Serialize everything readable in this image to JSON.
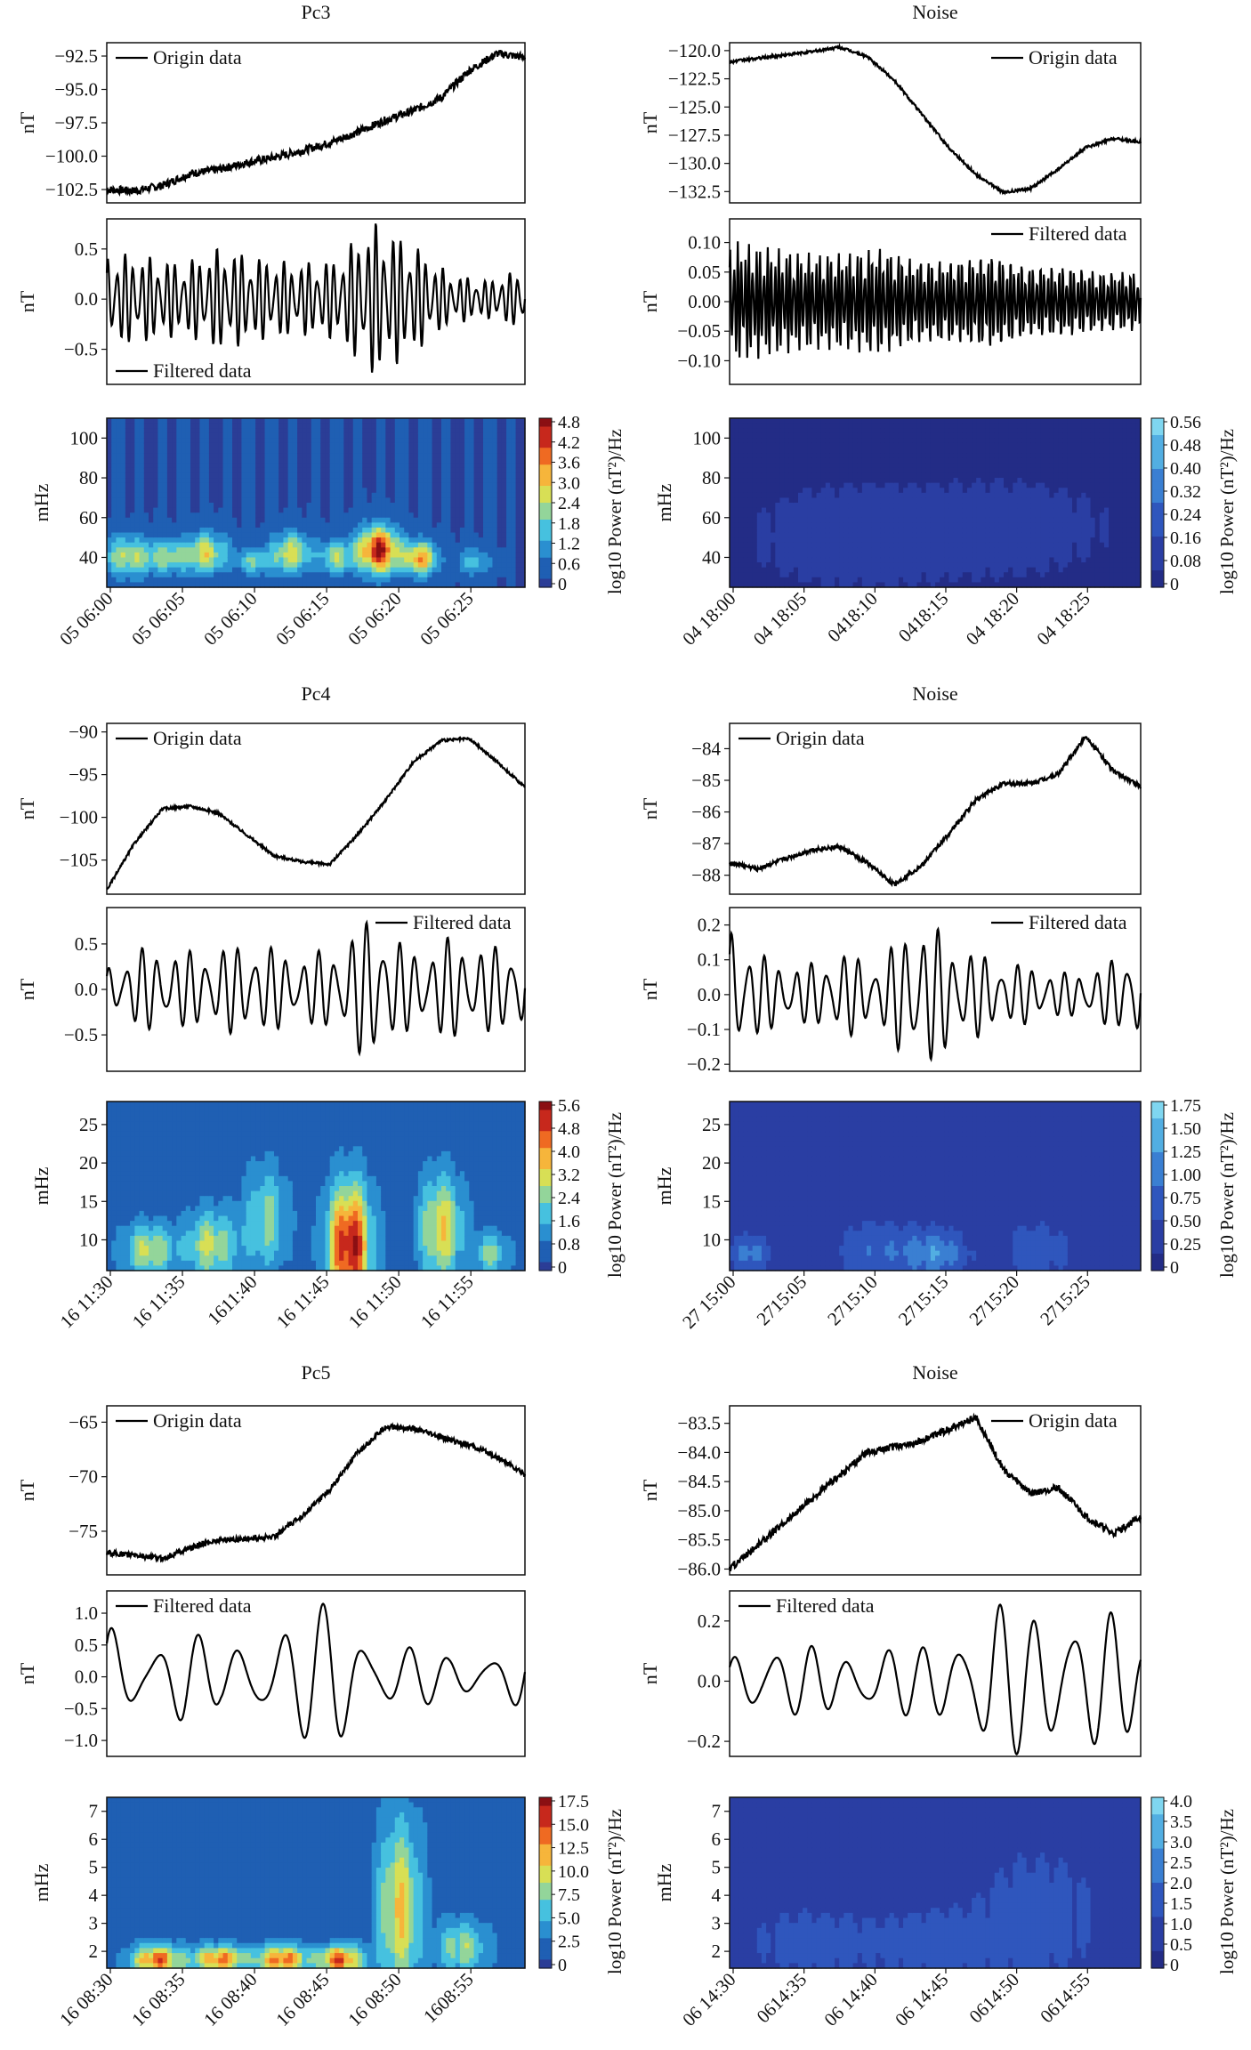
{
  "colormap": [
    "#2b3d96",
    "#1f5fb3",
    "#2a8fd0",
    "#46c1df",
    "#93d59a",
    "#d8df55",
    "#f6b53b",
    "#ef6a22",
    "#c7281c",
    "#8b0f13"
  ],
  "colormap_blue": [
    "#232c86",
    "#2a3ea3",
    "#2f56bd",
    "#3a7fd2",
    "#52aee2",
    "#7fd6f0"
  ],
  "chart_data": [
    {
      "id": "pc3-origin",
      "type": "line",
      "title": "Pc3",
      "ylabel": "nT",
      "legend": "Origin data",
      "legend_pos": "top-left",
      "ylim": [
        -103.5,
        -91.5
      ],
      "yticks": [
        -92.5,
        -95.0,
        -97.5,
        -100.0,
        -102.5
      ],
      "ytick_labels": [
        "−92.5",
        "−95.0",
        "−97.5",
        "−100.0",
        "−102.5"
      ],
      "x": [
        0,
        2,
        4,
        6,
        8,
        10,
        12,
        14,
        16,
        18,
        20,
        22,
        24,
        26,
        28,
        30
      ],
      "y": [
        -102.5,
        -102.6,
        -102.2,
        -101.3,
        -101,
        -100.5,
        -100.1,
        -99.6,
        -99,
        -98.2,
        -97.3,
        -96.6,
        -95.6,
        -93.6,
        -92.3,
        -92.6
      ],
      "noise": 0.3
    },
    {
      "id": "pc3-filtered",
      "type": "line",
      "ylabel": "nT",
      "legend": "Filtered data",
      "legend_pos": "bottom-left",
      "ylim": [
        -0.85,
        0.8
      ],
      "yticks": [
        0.5,
        0.0,
        -0.5
      ],
      "ytick_labels": [
        "0.5",
        "0.0",
        "−0.5"
      ],
      "osc": {
        "periods": 50,
        "amp": [
          0.45,
          0.42,
          0.35,
          0.5,
          0.4,
          0.35,
          0.38,
          0.75,
          0.55,
          0.25,
          0.18,
          0.3
        ]
      }
    },
    {
      "id": "pc3-spectrum",
      "type": "heatmap",
      "ylabel": "mHz",
      "yticks": [
        40,
        60,
        80,
        100
      ],
      "ytick_labels": [
        "40",
        "60",
        "80",
        "100"
      ],
      "ylim": [
        25,
        110
      ],
      "x_labels": [
        "05 06:00",
        "05 06:05",
        "05 06:10",
        "05 06:15",
        "05 06:20",
        "05 06:25"
      ],
      "colorbar_ticks": [
        "4.8",
        "4.2",
        "3.6",
        "3.0",
        "2.4",
        "1.8",
        "1.2",
        "0.6",
        "0"
      ],
      "colorbar_label": "log10 Power (nT²)/Hz",
      "palette": "full",
      "base": 0.06,
      "blobs": [
        [
          0.05,
          0.18,
          0.06,
          0.12,
          0.5
        ],
        [
          0.15,
          0.18,
          0.05,
          0.1,
          0.4
        ],
        [
          0.24,
          0.2,
          0.05,
          0.12,
          0.55
        ],
        [
          0.35,
          0.15,
          0.04,
          0.08,
          0.35
        ],
        [
          0.44,
          0.2,
          0.05,
          0.12,
          0.55
        ],
        [
          0.55,
          0.18,
          0.04,
          0.1,
          0.45
        ],
        [
          0.65,
          0.22,
          0.05,
          0.14,
          0.95
        ],
        [
          0.75,
          0.17,
          0.04,
          0.1,
          0.7
        ],
        [
          0.88,
          0.15,
          0.04,
          0.08,
          0.3
        ]
      ]
    },
    {
      "id": "noise1-origin",
      "type": "line",
      "title": "Noise",
      "ylabel": "nT",
      "legend": "Origin data",
      "legend_pos": "top-right",
      "ylim": [
        -133.5,
        -119.3
      ],
      "yticks": [
        -120.0,
        -122.5,
        -125.0,
        -127.5,
        -130.0,
        -132.5
      ],
      "ytick_labels": [
        "−120.0",
        "−122.5",
        "−125.0",
        "−127.5",
        "−130.0",
        "−132.5"
      ],
      "x": [
        0,
        2,
        4,
        6,
        8,
        10,
        12,
        14,
        16,
        18,
        20,
        22,
        24,
        26,
        28,
        30
      ],
      "y": [
        -121,
        -120.7,
        -120.4,
        -120.1,
        -119.7,
        -120.5,
        -122.6,
        -125.6,
        -128.6,
        -131,
        -132.6,
        -132.2,
        -130.5,
        -128.6,
        -127.8,
        -128.1
      ],
      "noise": 0.12
    },
    {
      "id": "noise1-filtered",
      "type": "line",
      "ylabel": "nT",
      "legend": "Filtered data",
      "legend_pos": "top-right",
      "ylim": [
        -0.14,
        0.14
      ],
      "yticks": [
        0.1,
        0.05,
        0.0,
        -0.05,
        -0.1
      ],
      "ytick_labels": [
        "0.10",
        "0.05",
        "0.00",
        "−0.05",
        "−0.10"
      ],
      "osc": {
        "periods": 110,
        "amp": [
          0.1,
          0.09,
          0.08,
          0.08,
          0.09,
          0.07,
          0.07,
          0.08,
          0.06,
          0.06,
          0.05,
          0.05
        ]
      }
    },
    {
      "id": "noise1-spectrum",
      "type": "heatmap",
      "ylabel": "mHz",
      "yticks": [
        40,
        60,
        80,
        100
      ],
      "ytick_labels": [
        "40",
        "60",
        "80",
        "100"
      ],
      "ylim": [
        25,
        110
      ],
      "x_labels": [
        "04 18:00",
        "04 18:05",
        "0418:10",
        "0418:15",
        "04 18:20",
        "04 18:25"
      ],
      "colorbar_ticks": [
        "0.56",
        "0.48",
        "0.40",
        "0.32",
        "0.24",
        "0.16",
        "0.08",
        "0"
      ],
      "colorbar_label": "log10 Power (nT²)/Hz",
      "palette": "blue",
      "base": 0.05,
      "blobs": [
        [
          0.3,
          0.3,
          0.25,
          0.3,
          0.15
        ],
        [
          0.7,
          0.35,
          0.25,
          0.3,
          0.12
        ]
      ]
    },
    {
      "id": "pc4-origin",
      "type": "line",
      "title": "Pc4",
      "ylabel": "nT",
      "legend": "Origin data",
      "legend_pos": "top-left",
      "ylim": [
        -109,
        -89
      ],
      "yticks": [
        -90,
        -95,
        -100,
        -105
      ],
      "ytick_labels": [
        "−90",
        "−95",
        "−100",
        "−105"
      ],
      "x": [
        0,
        2,
        4,
        6,
        8,
        10,
        12,
        14,
        16,
        18,
        20,
        22,
        24,
        26,
        28,
        30
      ],
      "y": [
        -108.5,
        -103,
        -99,
        -98.7,
        -99.5,
        -102,
        -104.5,
        -105.2,
        -105.5,
        -102,
        -98,
        -93.5,
        -91,
        -90.8,
        -93.5,
        -96.5
      ],
      "noise": 0.15
    },
    {
      "id": "pc4-filtered",
      "type": "line",
      "ylabel": "nT",
      "legend": "Filtered data",
      "legend_pos": "top-right",
      "ylim": [
        -0.9,
        0.9
      ],
      "yticks": [
        0.5,
        0.0,
        -0.5
      ],
      "ytick_labels": [
        "0.5",
        "0.0",
        "−0.5"
      ],
      "osc": {
        "periods": 26,
        "amp": [
          0.25,
          0.45,
          0.4,
          0.45,
          0.5,
          0.35,
          0.45,
          0.8,
          0.4,
          0.55,
          0.45,
          0.5
        ]
      }
    },
    {
      "id": "pc4-spectrum",
      "type": "heatmap",
      "ylabel": "mHz",
      "yticks": [
        10,
        15,
        20,
        25
      ],
      "ytick_labels": [
        "10",
        "15",
        "20",
        "25"
      ],
      "ylim": [
        6,
        28
      ],
      "x_labels": [
        "16 11:30",
        "16 11:35",
        "1611:40",
        "16 11:45",
        "16 11:50",
        "16 11:55"
      ],
      "colorbar_ticks": [
        "5.6",
        "4.8",
        "4.0",
        "3.2",
        "2.4",
        "1.6",
        "0.8",
        "0"
      ],
      "colorbar_label": "log10 Power (nT²)/Hz",
      "palette": "full",
      "base": 0.12,
      "blobs": [
        [
          0.1,
          0.12,
          0.06,
          0.15,
          0.45
        ],
        [
          0.25,
          0.15,
          0.06,
          0.2,
          0.45
        ],
        [
          0.38,
          0.3,
          0.05,
          0.3,
          0.35
        ],
        [
          0.58,
          0.15,
          0.05,
          0.35,
          0.95
        ],
        [
          0.8,
          0.25,
          0.05,
          0.3,
          0.55
        ],
        [
          0.92,
          0.1,
          0.04,
          0.12,
          0.35
        ]
      ]
    },
    {
      "id": "noise2-origin",
      "type": "line",
      "title": "Noise",
      "ylabel": "nT",
      "legend": "Origin data",
      "legend_pos": "top-left",
      "ylim": [
        -88.6,
        -83.2
      ],
      "yticks": [
        -84,
        -85,
        -86,
        -87,
        -88
      ],
      "ytick_labels": [
        "−84",
        "−85",
        "−86",
        "−87",
        "−88"
      ],
      "x": [
        0,
        2,
        4,
        6,
        8,
        10,
        12,
        14,
        16,
        18,
        20,
        22,
        24,
        26,
        28,
        30
      ],
      "y": [
        -87.6,
        -87.8,
        -87.5,
        -87.2,
        -87.1,
        -87.6,
        -88.3,
        -87.7,
        -86.7,
        -85.6,
        -85.1,
        -85.1,
        -84.8,
        -83.6,
        -84.7,
        -85.2
      ],
      "noise": 0.07
    },
    {
      "id": "noise2-filtered",
      "type": "line",
      "ylabel": "nT",
      "legend": "Filtered data",
      "legend_pos": "top-right",
      "ylim": [
        -0.22,
        0.25
      ],
      "yticks": [
        0.2,
        0.1,
        0.0,
        -0.1,
        -0.2
      ],
      "ytick_labels": [
        "0.2",
        "0.1",
        "0.0",
        "−0.1",
        "−0.2"
      ],
      "osc": {
        "periods": 26,
        "amp": [
          0.2,
          0.1,
          0.08,
          0.12,
          0.09,
          0.22,
          0.15,
          0.1,
          0.08,
          0.06,
          0.08,
          0.15
        ]
      }
    },
    {
      "id": "noise2-spectrum",
      "type": "heatmap",
      "ylabel": "mHz",
      "yticks": [
        10,
        15,
        20,
        25
      ],
      "ytick_labels": [
        "10",
        "15",
        "20",
        "25"
      ],
      "ylim": [
        6,
        28
      ],
      "x_labels": [
        "27 15:00",
        "2715:05",
        "2715:10",
        "2715:15",
        "2715:20",
        "2715:25"
      ],
      "colorbar_ticks": [
        "1.75",
        "1.50",
        "1.25",
        "1.00",
        "0.75",
        "0.50",
        "0.25",
        "0"
      ],
      "colorbar_label": "log10 Power (nT²)/Hz",
      "palette": "blue",
      "base": 0.15,
      "blobs": [
        [
          0.05,
          0.1,
          0.05,
          0.12,
          0.5
        ],
        [
          0.35,
          0.12,
          0.1,
          0.2,
          0.35
        ],
        [
          0.5,
          0.1,
          0.08,
          0.15,
          0.55
        ],
        [
          0.75,
          0.12,
          0.1,
          0.2,
          0.3
        ]
      ]
    },
    {
      "id": "pc5-origin",
      "type": "line",
      "title": "Pc5",
      "ylabel": "nT",
      "legend": "Origin data",
      "legend_pos": "top-left",
      "ylim": [
        -79,
        -63.5
      ],
      "yticks": [
        -65,
        -70,
        -75
      ],
      "ytick_labels": [
        "−65",
        "−70",
        "−75"
      ],
      "x": [
        0,
        2,
        4,
        6,
        8,
        10,
        12,
        14,
        16,
        18,
        20,
        22,
        24,
        26,
        28,
        30
      ],
      "y": [
        -77,
        -77.2,
        -77.5,
        -76.5,
        -75.8,
        -75.7,
        -75.5,
        -73.6,
        -71.2,
        -67.8,
        -65.4,
        -65.6,
        -66.4,
        -67.1,
        -68.2,
        -69.8
      ],
      "noise": 0.25
    },
    {
      "id": "pc5-filtered",
      "type": "line",
      "ylabel": "nT",
      "legend": "Filtered data",
      "legend_pos": "top-left",
      "ylim": [
        -1.25,
        1.35
      ],
      "yticks": [
        1.0,
        0.5,
        0.0,
        -0.5,
        -1.0
      ],
      "ytick_labels": [
        "1.0",
        "0.5",
        "0.0",
        "−0.5",
        "−1.0"
      ],
      "osc": {
        "periods": 10,
        "amp": [
          0.9,
          0.5,
          0.8,
          0.4,
          0.8,
          0.9,
          1.2,
          0.6,
          0.5,
          0.3,
          0.4,
          0.6
        ]
      }
    },
    {
      "id": "pc5-spectrum",
      "type": "heatmap",
      "ylabel": "mHz",
      "yticks": [
        2,
        3,
        4,
        5,
        6,
        7
      ],
      "ytick_labels": [
        "2",
        "3",
        "4",
        "5",
        "6",
        "7"
      ],
      "ylim": [
        1.4,
        7.5
      ],
      "x_labels": [
        "16 08:30",
        "16 08:35",
        "16 08:40",
        "16 08:45",
        "16 08:50",
        "1608:55"
      ],
      "colorbar_ticks": [
        "17.5",
        "15.0",
        "12.5",
        "10.0",
        "7.5",
        "5.0",
        "2.5",
        "0"
      ],
      "colorbar_label": "log10 Power (nT²)/Hz",
      "palette": "full",
      "base": 0.12,
      "blobs": [
        [
          0.12,
          0.05,
          0.06,
          0.08,
          0.75
        ],
        [
          0.27,
          0.05,
          0.06,
          0.08,
          0.7
        ],
        [
          0.42,
          0.05,
          0.06,
          0.08,
          0.75
        ],
        [
          0.56,
          0.05,
          0.05,
          0.08,
          0.8
        ],
        [
          0.7,
          0.35,
          0.05,
          0.5,
          0.55
        ],
        [
          0.85,
          0.12,
          0.06,
          0.15,
          0.4
        ]
      ]
    },
    {
      "id": "noise3-origin",
      "type": "line",
      "title": "Noise",
      "ylabel": "nT",
      "legend": "Origin data",
      "legend_pos": "top-right",
      "ylim": [
        -86.1,
        -83.2
      ],
      "yticks": [
        -83.5,
        -84.0,
        -84.5,
        -85.0,
        -85.5,
        -86.0
      ],
      "ytick_labels": [
        "−83.5",
        "−84.0",
        "−84.5",
        "−85.0",
        "−85.5",
        "−86.0"
      ],
      "x": [
        0,
        2,
        4,
        6,
        8,
        10,
        12,
        14,
        16,
        18,
        20,
        22,
        24,
        26,
        28,
        30
      ],
      "y": [
        -86,
        -85.6,
        -85.2,
        -84.8,
        -84.4,
        -84,
        -83.9,
        -83.8,
        -83.6,
        -83.4,
        -84.3,
        -84.7,
        -84.6,
        -85.1,
        -85.4,
        -85.1
      ],
      "noise": 0.06
    },
    {
      "id": "noise3-filtered",
      "type": "line",
      "ylabel": "nT",
      "legend": "Filtered data",
      "legend_pos": "top-left",
      "ylim": [
        -0.25,
        0.3
      ],
      "yticks": [
        0.2,
        0.0,
        -0.2
      ],
      "ytick_labels": [
        "0.2",
        "0.0",
        "−0.2"
      ],
      "osc": {
        "periods": 11,
        "amp": [
          0.08,
          0.15,
          0.12,
          0.08,
          0.15,
          0.1,
          0.15,
          0.3,
          0.2,
          0.28,
          0.25,
          0.12
        ]
      }
    },
    {
      "id": "noise3-spectrum",
      "type": "heatmap",
      "ylabel": "mHz",
      "yticks": [
        2,
        3,
        4,
        5,
        6,
        7
      ],
      "ytick_labels": [
        "2",
        "3",
        "4",
        "5",
        "6",
        "7"
      ],
      "ylim": [
        1.4,
        7.5
      ],
      "x_labels": [
        "06 14:30",
        "0614:35",
        "06 14:40",
        "06 14:45",
        "0614:50",
        "0614:55"
      ],
      "colorbar_ticks": [
        "4.0",
        "3.5",
        "3.0",
        "2.5",
        "2.0",
        "1.5",
        "1.0",
        "0.5",
        "0"
      ],
      "colorbar_label": "log10 Power (nT²)/Hz",
      "palette": "blue",
      "base": 0.2,
      "blobs": [
        [
          0.2,
          0.15,
          0.15,
          0.2,
          0.25
        ],
        [
          0.5,
          0.15,
          0.15,
          0.2,
          0.25
        ],
        [
          0.75,
          0.3,
          0.15,
          0.4,
          0.25
        ]
      ]
    }
  ]
}
